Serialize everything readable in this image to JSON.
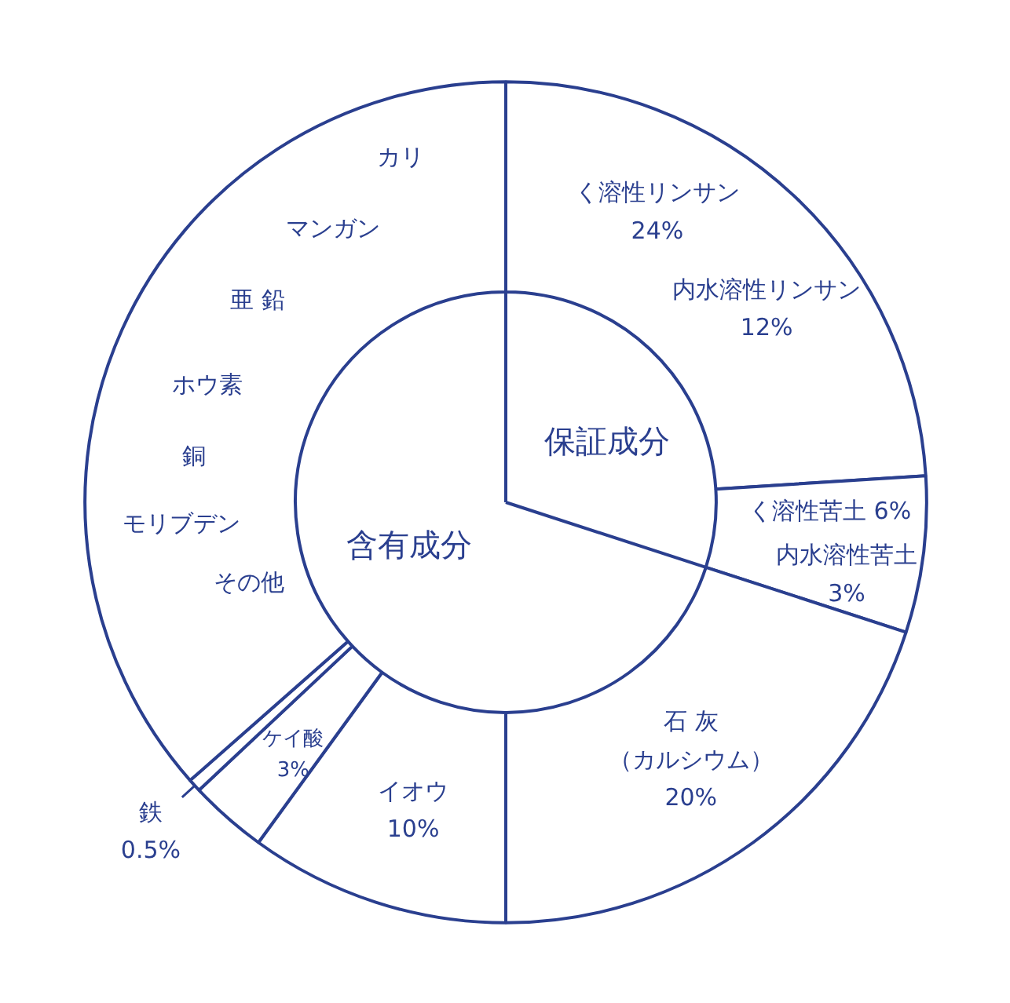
{
  "chart_data": {
    "type": "donut",
    "categories": [
      "く溶性リンサン",
      "く溶性苦土",
      "石 灰（カルシウム）",
      "イオウ",
      "ケイ酸",
      "鉄",
      null
    ],
    "values": [
      24,
      6,
      20,
      10,
      3,
      0.5,
      36.5
    ],
    "value_labels": [
      "24%",
      "6%",
      "20%",
      "10%",
      "3%",
      "0.5%",
      null
    ],
    "colors": [
      "#ffffff",
      "#ffffff",
      "#ffffff",
      "#ffffff",
      "#ffffff",
      "#ffffff",
      "#ffffff"
    ],
    "annotations": [
      "内水溶性リンサン\n12%",
      "内水溶性苦土\n3%",
      "保証成分",
      "含有成分",
      "カリ",
      "マンガン",
      "亜 鉛",
      "ホウ素",
      "銅",
      "モリブデン",
      "その他"
    ]
  }
}
